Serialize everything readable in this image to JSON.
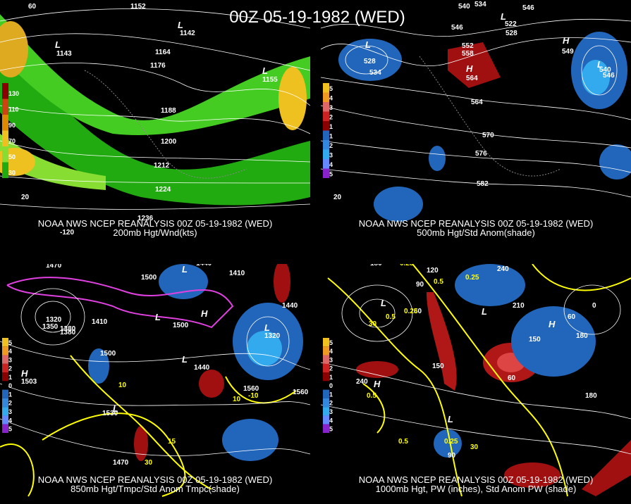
{
  "title": "00Z 05-19-1982 (WED)",
  "panels": [
    {
      "source": "NOAA NWS NCEP REANALYSIS 00Z 05-19-1982 (WED)",
      "caption": "200mb Hgt/Wnd(kts)",
      "legend": [
        "130",
        "110",
        "90",
        "70",
        "50",
        "30"
      ],
      "labels": [
        "60",
        "1152",
        "L",
        "1142",
        "L",
        "1143",
        "1164",
        "1176",
        "L",
        "1155",
        "1188",
        "1200",
        "1212",
        "1224",
        "1236",
        "-120",
        "20"
      ]
    },
    {
      "source": "NOAA NWS NCEP REANALYSIS 00Z 05-19-1982 (WED)",
      "caption": "500mb Hgt/Std Anom(shade)",
      "legend": [
        "5",
        "4",
        "3",
        "2",
        "1",
        "1",
        "2",
        "3",
        "4",
        "5"
      ],
      "labels": [
        "540",
        "534",
        "546",
        "L",
        "522",
        "528",
        "546",
        "552",
        "558",
        "H",
        "564",
        "L",
        "528",
        "534",
        "H",
        "549",
        "L",
        "540",
        "546",
        "564",
        "570",
        "576",
        "582",
        "20"
      ]
    },
    {
      "source": "NOAA NWS NCEP REANALYSIS 00Z 05-19-1982 (WED)",
      "caption": "850mb Hgt/Tmpc/Std Anom Tmpc(shade)",
      "legend": [
        "5",
        "4",
        "3",
        "2",
        "1",
        "0",
        "1",
        "2",
        "3",
        "4",
        "5"
      ],
      "labels": [
        "1470",
        "1440",
        "L",
        "1410",
        "1380",
        "1350",
        "1320",
        "1500",
        "L",
        "1440",
        "1410",
        "H",
        "1500",
        "L",
        "1320",
        "1380",
        "1500",
        "L",
        "1440",
        "1530",
        "1470",
        "1560",
        "30",
        "15",
        "10",
        "-10",
        "H",
        "1503",
        "L",
        "1560",
        "10"
      ]
    },
    {
      "source": "NOAA NWS NCEP REANALYSIS 00Z 05-19-1982 (WED)",
      "caption": "1000mb Hgt, PW (inches), Std Anom PW (shade)",
      "legend": [
        "5",
        "4",
        "3",
        "2",
        "1",
        "0",
        "1",
        "2",
        "3",
        "4",
        "5"
      ],
      "labels": [
        "180",
        "0.25",
        "120",
        "0.5",
        "90",
        "0.25",
        "L",
        "30",
        "60",
        "0.5",
        "0.25",
        "150",
        "240",
        "210",
        "L",
        "0",
        "60",
        "180",
        "H",
        "150",
        "240",
        "H",
        "0.5",
        "180",
        "60",
        "0.5",
        "0.25",
        "L",
        "30",
        "90"
      ]
    }
  ]
}
